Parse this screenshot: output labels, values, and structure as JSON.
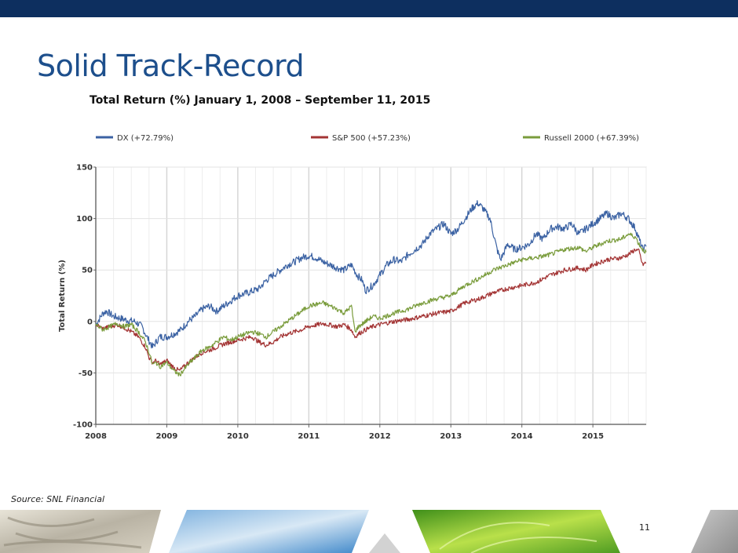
{
  "slide": {
    "title": "Solid Track-Record",
    "source": "Source: SNL Financial",
    "page_number": "11"
  },
  "colors": {
    "header_bar": "#0d2f5f",
    "title": "#1d4f8c",
    "dx": "#3b62a3",
    "sp500": "#a33434",
    "russell2000": "#7a9c3c"
  },
  "chart_data": {
    "type": "line",
    "title": "Total Return (%) January 1, 2008 – September 11, 2015",
    "xlabel": "",
    "ylabel": "Total Return (%)",
    "xlim": [
      2008.0,
      2015.75
    ],
    "ylim": [
      -100,
      150
    ],
    "y_ticks": [
      "150",
      "100",
      "50",
      "0",
      "-50",
      "-100"
    ],
    "x_ticks": [
      "2008",
      "2009",
      "2010",
      "2011",
      "2012",
      "2013",
      "2014",
      "2015"
    ],
    "legend_position": "top",
    "grid": true,
    "series": [
      {
        "name": "DX (+72.79%)",
        "color": "#3b62a3",
        "x": [
          2008.0,
          2008.1,
          2008.15,
          2008.25,
          2008.35,
          2008.45,
          2008.55,
          2008.65,
          2008.72,
          2008.8,
          2008.85,
          2008.9,
          2009.0,
          2009.1,
          2009.2,
          2009.3,
          2009.4,
          2009.5,
          2009.6,
          2009.7,
          2009.8,
          2009.9,
          2010.0,
          2010.15,
          2010.3,
          2010.4,
          2010.5,
          2010.6,
          2010.7,
          2010.8,
          2010.9,
          2011.0,
          2011.1,
          2011.2,
          2011.3,
          2011.4,
          2011.5,
          2011.6,
          2011.68,
          2011.75,
          2011.8,
          2011.9,
          2012.0,
          2012.1,
          2012.2,
          2012.3,
          2012.4,
          2012.5,
          2012.6,
          2012.7,
          2012.8,
          2012.9,
          2013.0,
          2013.1,
          2013.2,
          2013.3,
          2013.38,
          2013.45,
          2013.5,
          2013.55,
          2013.6,
          2013.65,
          2013.7,
          2013.8,
          2013.9,
          2014.0,
          2014.1,
          2014.2,
          2014.3,
          2014.4,
          2014.5,
          2014.6,
          2014.7,
          2014.8,
          2014.9,
          2015.0,
          2015.1,
          2015.2,
          2015.3,
          2015.4,
          2015.5,
          2015.55,
          2015.6,
          2015.65,
          2015.7,
          2015.75
        ],
        "values": [
          -3,
          8,
          10,
          5,
          3,
          1,
          0,
          -5,
          -15,
          -25,
          -20,
          -15,
          -15,
          -12,
          -8,
          0,
          5,
          12,
          15,
          10,
          15,
          20,
          25,
          28,
          32,
          40,
          45,
          50,
          55,
          58,
          62,
          64,
          62,
          58,
          55,
          52,
          50,
          55,
          45,
          40,
          30,
          35,
          45,
          55,
          60,
          58,
          65,
          70,
          75,
          85,
          90,
          95,
          85,
          90,
          100,
          110,
          115,
          110,
          105,
          100,
          85,
          70,
          60,
          75,
          70,
          72,
          75,
          85,
          80,
          90,
          92,
          90,
          95,
          85,
          90,
          95,
          100,
          105,
          100,
          105,
          100,
          95,
          90,
          80,
          70,
          72.79
        ]
      },
      {
        "name": "S&P 500 (+57.23%)",
        "color": "#a33434",
        "x": [
          2008.0,
          2008.1,
          2008.2,
          2008.3,
          2008.4,
          2008.5,
          2008.6,
          2008.7,
          2008.75,
          2008.8,
          2008.85,
          2008.9,
          2009.0,
          2009.1,
          2009.18,
          2009.3,
          2009.4,
          2009.5,
          2009.6,
          2009.7,
          2009.8,
          2009.9,
          2010.0,
          2010.2,
          2010.3,
          2010.4,
          2010.5,
          2010.6,
          2010.7,
          2010.8,
          2010.9,
          2011.0,
          2011.2,
          2011.4,
          2011.5,
          2011.6,
          2011.65,
          2011.7,
          2011.8,
          2011.9,
          2012.0,
          2012.2,
          2012.4,
          2012.6,
          2012.8,
          2013.0,
          2013.2,
          2013.4,
          2013.6,
          2013.8,
          2014.0,
          2014.2,
          2014.4,
          2014.6,
          2014.8,
          2014.9,
          2015.0,
          2015.2,
          2015.4,
          2015.5,
          2015.6,
          2015.65,
          2015.7,
          2015.75
        ],
        "values": [
          -3,
          -7,
          -5,
          -3,
          -6,
          -10,
          -15,
          -25,
          -35,
          -40,
          -38,
          -42,
          -38,
          -45,
          -48,
          -40,
          -35,
          -30,
          -28,
          -25,
          -22,
          -20,
          -18,
          -15,
          -20,
          -23,
          -20,
          -15,
          -12,
          -10,
          -8,
          -5,
          -2,
          -5,
          -3,
          -8,
          -15,
          -12,
          -8,
          -5,
          -3,
          0,
          2,
          5,
          8,
          10,
          18,
          22,
          28,
          32,
          35,
          38,
          45,
          50,
          52,
          50,
          55,
          60,
          62,
          65,
          70,
          68,
          55,
          57.23
        ]
      },
      {
        "name": "Russell 2000 (+67.39%)",
        "color": "#7a9c3c",
        "x": [
          2008.0,
          2008.1,
          2008.2,
          2008.3,
          2008.4,
          2008.5,
          2008.6,
          2008.7,
          2008.75,
          2008.8,
          2008.85,
          2008.9,
          2009.0,
          2009.1,
          2009.18,
          2009.3,
          2009.4,
          2009.5,
          2009.6,
          2009.7,
          2009.8,
          2009.9,
          2010.0,
          2010.2,
          2010.3,
          2010.4,
          2010.5,
          2010.6,
          2010.7,
          2010.8,
          2010.9,
          2011.0,
          2011.2,
          2011.4,
          2011.5,
          2011.6,
          2011.65,
          2011.7,
          2011.8,
          2011.9,
          2012.0,
          2012.2,
          2012.4,
          2012.6,
          2012.8,
          2013.0,
          2013.2,
          2013.4,
          2013.6,
          2013.8,
          2014.0,
          2014.2,
          2014.4,
          2014.6,
          2014.8,
          2014.9,
          2015.0,
          2015.2,
          2015.4,
          2015.5,
          2015.6,
          2015.65,
          2015.7,
          2015.75
        ],
        "values": [
          -3,
          -8,
          -5,
          -2,
          -5,
          -3,
          -10,
          -20,
          -30,
          -42,
          -40,
          -44,
          -40,
          -48,
          -52,
          -42,
          -35,
          -28,
          -25,
          -20,
          -15,
          -18,
          -15,
          -10,
          -12,
          -15,
          -10,
          -5,
          0,
          5,
          10,
          15,
          18,
          12,
          8,
          15,
          -10,
          -5,
          0,
          5,
          3,
          8,
          12,
          18,
          22,
          25,
          35,
          42,
          50,
          55,
          60,
          62,
          65,
          70,
          72,
          68,
          72,
          78,
          80,
          85,
          82,
          75,
          70,
          67.39
        ]
      }
    ]
  }
}
